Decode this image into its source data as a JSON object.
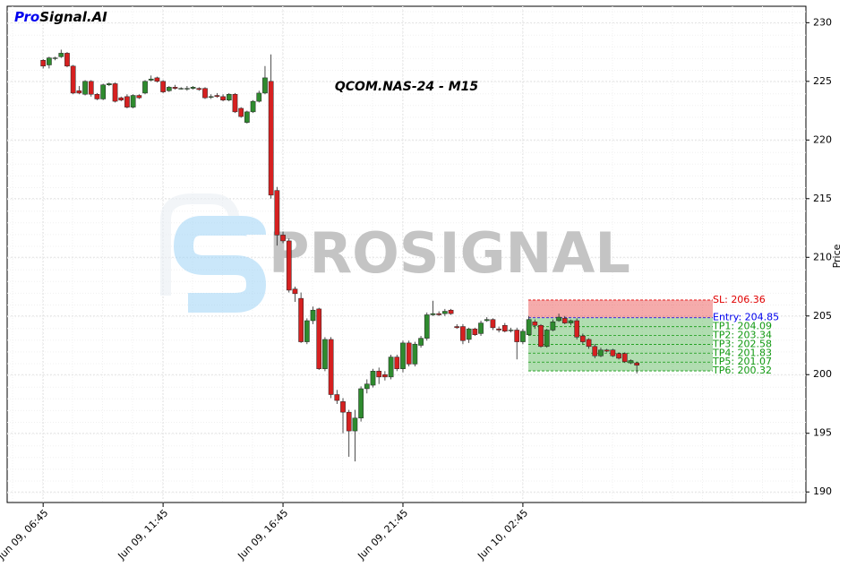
{
  "logo": {
    "pro": "Pro",
    "rest": "Signal.AI"
  },
  "watermark": "PROSIGNAL",
  "chart_data": {
    "type": "candlestick",
    "title": "QCOM.NAS-24 - M15",
    "ylabel": "Price",
    "x": [
      0,
      1,
      2,
      3,
      4,
      5,
      6,
      7,
      8,
      9,
      10,
      11,
      12,
      13,
      14,
      15,
      16,
      17,
      18,
      19,
      20,
      21,
      22,
      23,
      24,
      25,
      26,
      27,
      28,
      29,
      30,
      31,
      32,
      33,
      34,
      35,
      36,
      37,
      38,
      39,
      40,
      41,
      42,
      43,
      44,
      45,
      46,
      47,
      48,
      49,
      50,
      51,
      52,
      53,
      54,
      55,
      56,
      57,
      58,
      59,
      60,
      61,
      62,
      63,
      64,
      65,
      66,
      67,
      68,
      69,
      70,
      71,
      72,
      73,
      74,
      75,
      76,
      77,
      78,
      79,
      80,
      81,
      82,
      83,
      84,
      85,
      86,
      87,
      88,
      89,
      90,
      91,
      92,
      93,
      94,
      95,
      96,
      97,
      98,
      99
    ],
    "open": [
      226.8,
      226.4,
      227.0,
      227.1,
      227.4,
      226.3,
      224.2,
      223.9,
      225.0,
      223.9,
      223.5,
      224.7,
      224.8,
      223.6,
      223.7,
      222.8,
      223.8,
      224.0,
      225.1,
      225.3,
      225.0,
      224.2,
      224.5,
      224.4,
      224.4,
      224.4,
      224.4,
      224.4,
      223.7,
      223.8,
      223.7,
      223.4,
      223.9,
      222.7,
      221.5,
      222.4,
      223.3,
      224.0,
      225.0,
      215.7,
      211.9,
      211.4,
      207.3,
      206.5,
      202.8,
      204.6,
      205.6,
      200.5,
      203.0,
      198.3,
      197.7,
      196.8,
      195.2,
      196.3,
      198.8,
      199.1,
      200.3,
      200.0,
      199.8,
      201.5,
      200.5,
      202.7,
      200.9,
      202.5,
      203.1,
      205.1,
      205.2,
      205.2,
      205.5,
      204.1,
      204.1,
      203.0,
      203.9,
      203.5,
      204.6,
      204.7,
      203.9,
      204.2,
      203.8,
      203.8,
      202.8,
      203.4,
      204.5,
      204.2,
      202.4,
      203.8,
      204.6,
      204.8,
      204.4,
      204.6,
      203.3,
      203.0,
      202.4,
      201.6,
      202.1,
      202.1,
      201.8,
      201.8,
      201.0,
      201.0
    ],
    "high": [
      226.9,
      227.1,
      227.1,
      227.7,
      227.5,
      226.4,
      224.6,
      225.1,
      225.1,
      224.0,
      224.8,
      224.9,
      224.9,
      223.7,
      223.9,
      223.9,
      223.9,
      225.1,
      225.5,
      225.4,
      225.1,
      224.6,
      224.7,
      224.5,
      224.6,
      224.6,
      224.5,
      224.5,
      223.9,
      224.0,
      223.9,
      224.0,
      224.0,
      222.8,
      222.5,
      223.4,
      224.2,
      226.3,
      227.3,
      216.0,
      212.2,
      211.6,
      207.5,
      207.0,
      204.8,
      205.8,
      205.7,
      203.2,
      203.2,
      198.7,
      198.0,
      197.0,
      197.0,
      199.0,
      199.6,
      200.5,
      200.6,
      200.3,
      201.7,
      201.7,
      202.9,
      202.9,
      202.8,
      203.3,
      205.3,
      206.3,
      205.4,
      205.6,
      205.6,
      204.3,
      204.3,
      204.0,
      204.0,
      204.6,
      204.9,
      204.8,
      204.1,
      204.4,
      204.0,
      204.0,
      203.9,
      205.0,
      204.7,
      204.3,
      203.9,
      204.7,
      205.2,
      205.0,
      204.7,
      204.8,
      203.5,
      203.1,
      202.6,
      202.3,
      202.2,
      202.2,
      201.9,
      201.9,
      201.3,
      201.1
    ],
    "low": [
      226.1,
      226.1,
      226.8,
      227.0,
      226.2,
      223.9,
      223.9,
      223.8,
      223.7,
      223.4,
      223.4,
      224.6,
      223.2,
      223.3,
      222.7,
      222.7,
      223.5,
      223.9,
      225.0,
      224.9,
      224.0,
      224.1,
      224.3,
      224.3,
      224.2,
      224.3,
      224.2,
      223.5,
      223.5,
      223.6,
      223.3,
      223.3,
      222.3,
      221.9,
      221.4,
      222.3,
      223.2,
      223.9,
      215.0,
      211.0,
      211.2,
      207.0,
      206.2,
      202.7,
      202.6,
      204.3,
      200.4,
      200.3,
      198.0,
      197.5,
      195.0,
      193.0,
      192.6,
      196.0,
      198.4,
      198.9,
      199.2,
      199.5,
      199.6,
      200.3,
      200.2,
      200.7,
      200.7,
      202.3,
      202.9,
      205.0,
      205.0,
      205.0,
      205.1,
      203.9,
      202.6,
      202.7,
      203.3,
      203.3,
      204.5,
      203.8,
      203.6,
      203.6,
      203.6,
      201.3,
      202.6,
      203.3,
      203.9,
      202.3,
      202.3,
      203.7,
      204.5,
      204.3,
      204.2,
      203.0,
      202.6,
      202.2,
      201.4,
      201.5,
      201.9,
      201.5,
      201.3,
      201.0,
      200.9,
      200.1
    ],
    "close": [
      226.3,
      227.0,
      227.0,
      227.4,
      226.3,
      224.0,
      224.0,
      225.0,
      223.9,
      223.5,
      224.7,
      224.8,
      223.3,
      223.4,
      222.8,
      223.8,
      223.6,
      225.0,
      225.2,
      225.0,
      224.1,
      224.5,
      224.4,
      224.4,
      224.4,
      224.5,
      224.3,
      223.6,
      223.7,
      223.7,
      223.4,
      223.9,
      222.4,
      222.0,
      222.4,
      223.3,
      224.0,
      225.3,
      215.3,
      211.9,
      211.4,
      207.2,
      206.9,
      202.8,
      204.6,
      205.5,
      200.5,
      203.0,
      198.3,
      197.8,
      196.8,
      195.2,
      196.3,
      198.8,
      199.2,
      200.3,
      199.8,
      199.8,
      201.5,
      200.5,
      202.7,
      200.9,
      202.6,
      203.1,
      205.1,
      205.2,
      205.1,
      205.4,
      205.2,
      204.0,
      202.9,
      203.9,
      203.4,
      204.4,
      204.7,
      204.0,
      203.8,
      203.7,
      203.8,
      202.8,
      203.7,
      204.7,
      204.2,
      202.4,
      203.8,
      204.5,
      204.9,
      204.4,
      204.6,
      203.2,
      202.8,
      202.4,
      201.6,
      202.1,
      202.0,
      201.6,
      201.4,
      201.1,
      201.2,
      200.8
    ],
    "up_color": "#2e8b2e",
    "down_color": "#d62020",
    "xlim": [
      -6,
      127.2
    ],
    "ylim": [
      189.1,
      231.4
    ],
    "xticks": [
      {
        "value": 0,
        "label": "Jun 09, 06:45"
      },
      {
        "value": 20,
        "label": "Jun 09, 11:45"
      },
      {
        "value": 40,
        "label": "Jun 09, 16:45"
      },
      {
        "value": 60,
        "label": "Jun 09, 21:45"
      },
      {
        "value": 80,
        "label": "Jun 10, 02:45"
      }
    ],
    "yticks": [
      190,
      195,
      200,
      205,
      210,
      215,
      220,
      225,
      230
    ],
    "grid": true,
    "levels": [
      {
        "label": "SL: 206.36",
        "value": 206.36,
        "color": "#e00000"
      },
      {
        "label": "Entry: 204.85",
        "value": 204.85,
        "color": "#0000ee"
      },
      {
        "label": "TP1: 204.09",
        "value": 204.09,
        "color": "#119911"
      },
      {
        "label": "TP2: 203.34",
        "value": 203.34,
        "color": "#119911"
      },
      {
        "label": "TP3: 202.58",
        "value": 202.58,
        "color": "#119911"
      },
      {
        "label": "TP4: 201.83",
        "value": 201.83,
        "color": "#119911"
      },
      {
        "label": "TP5: 201.07",
        "value": 201.07,
        "color": "#119911"
      },
      {
        "label": "TP6: 200.32",
        "value": 200.32,
        "color": "#119911"
      }
    ]
  }
}
